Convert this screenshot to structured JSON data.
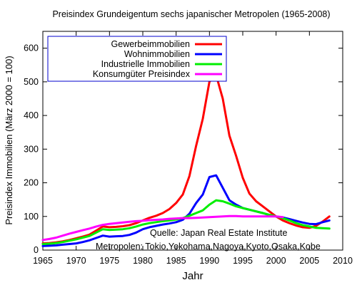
{
  "chart_data": {
    "type": "line",
    "title": "Preisindex Grundeigentum sechs japanischer Metropolen (1965-2008)",
    "xlabel": "Jahr",
    "ylabel": "Preisindex Immobilien (März 2000 = 100)",
    "xlim": [
      1965,
      2010
    ],
    "ylim": [
      0,
      650
    ],
    "xticks": [
      1965,
      1970,
      1975,
      1980,
      1985,
      1990,
      1995,
      2000,
      2005,
      2010
    ],
    "yticks": [
      0,
      100,
      200,
      300,
      400,
      500,
      600
    ],
    "grid": false,
    "legend_position": "top-left",
    "annotations": [
      "Quelle: Japan Real Estate Institute",
      "Metropolen: Tokio,Yokohama,Nagoya,Kyoto,Osaka,Kobe"
    ],
    "series": [
      {
        "name": "Gewerbeimmobilien",
        "color": "#ff0000",
        "points": [
          [
            1965,
            20
          ],
          [
            1966,
            21
          ],
          [
            1967,
            23
          ],
          [
            1968,
            26
          ],
          [
            1969,
            30
          ],
          [
            1970,
            35
          ],
          [
            1971,
            40
          ],
          [
            1972,
            46
          ],
          [
            1973,
            58
          ],
          [
            1974,
            70
          ],
          [
            1975,
            68
          ],
          [
            1976,
            69
          ],
          [
            1977,
            71
          ],
          [
            1978,
            74
          ],
          [
            1979,
            80
          ],
          [
            1980,
            88
          ],
          [
            1981,
            96
          ],
          [
            1982,
            102
          ],
          [
            1983,
            110
          ],
          [
            1984,
            122
          ],
          [
            1985,
            140
          ],
          [
            1986,
            165
          ],
          [
            1987,
            220
          ],
          [
            1988,
            310
          ],
          [
            1989,
            390
          ],
          [
            1990,
            500
          ],
          [
            1991,
            520
          ],
          [
            1992,
            450
          ],
          [
            1993,
            340
          ],
          [
            1994,
            280
          ],
          [
            1995,
            215
          ],
          [
            1996,
            168
          ],
          [
            1997,
            145
          ],
          [
            1998,
            130
          ],
          [
            1999,
            115
          ],
          [
            2000,
            100
          ],
          [
            2001,
            88
          ],
          [
            2002,
            80
          ],
          [
            2003,
            73
          ],
          [
            2004,
            68
          ],
          [
            2005,
            66
          ],
          [
            2006,
            72
          ],
          [
            2007,
            85
          ],
          [
            2008,
            100
          ]
        ]
      },
      {
        "name": "Wohnimmobilien",
        "color": "#0000ff",
        "points": [
          [
            1965,
            12
          ],
          [
            1966,
            13
          ],
          [
            1967,
            14
          ],
          [
            1968,
            16
          ],
          [
            1969,
            18
          ],
          [
            1970,
            20
          ],
          [
            1971,
            24
          ],
          [
            1972,
            29
          ],
          [
            1973,
            36
          ],
          [
            1974,
            43
          ],
          [
            1975,
            40
          ],
          [
            1976,
            41
          ],
          [
            1977,
            42
          ],
          [
            1978,
            45
          ],
          [
            1979,
            52
          ],
          [
            1980,
            62
          ],
          [
            1981,
            68
          ],
          [
            1982,
            72
          ],
          [
            1983,
            76
          ],
          [
            1984,
            79
          ],
          [
            1985,
            83
          ],
          [
            1986,
            90
          ],
          [
            1987,
            108
          ],
          [
            1988,
            140
          ],
          [
            1989,
            165
          ],
          [
            1990,
            217
          ],
          [
            1991,
            222
          ],
          [
            1992,
            185
          ],
          [
            1993,
            148
          ],
          [
            1994,
            135
          ],
          [
            1995,
            125
          ],
          [
            1996,
            120
          ],
          [
            1997,
            115
          ],
          [
            1998,
            110
          ],
          [
            1999,
            104
          ],
          [
            2000,
            100
          ],
          [
            2001,
            97
          ],
          [
            2002,
            92
          ],
          [
            2003,
            87
          ],
          [
            2004,
            82
          ],
          [
            2005,
            78
          ],
          [
            2006,
            77
          ],
          [
            2007,
            83
          ],
          [
            2008,
            88
          ]
        ]
      },
      {
        "name": "Industrielle Immobilien",
        "color": "#00ee00",
        "points": [
          [
            1965,
            18
          ],
          [
            1966,
            19
          ],
          [
            1967,
            21
          ],
          [
            1968,
            24
          ],
          [
            1969,
            28
          ],
          [
            1970,
            32
          ],
          [
            1971,
            37
          ],
          [
            1972,
            42
          ],
          [
            1973,
            52
          ],
          [
            1974,
            62
          ],
          [
            1975,
            60
          ],
          [
            1976,
            61
          ],
          [
            1977,
            62
          ],
          [
            1978,
            65
          ],
          [
            1979,
            70
          ],
          [
            1980,
            76
          ],
          [
            1981,
            80
          ],
          [
            1982,
            83
          ],
          [
            1983,
            86
          ],
          [
            1984,
            88
          ],
          [
            1985,
            91
          ],
          [
            1986,
            95
          ],
          [
            1987,
            102
          ],
          [
            1988,
            110
          ],
          [
            1989,
            118
          ],
          [
            1990,
            135
          ],
          [
            1991,
            148
          ],
          [
            1992,
            145
          ],
          [
            1993,
            138
          ],
          [
            1994,
            130
          ],
          [
            1995,
            125
          ],
          [
            1996,
            120
          ],
          [
            1997,
            115
          ],
          [
            1998,
            110
          ],
          [
            1999,
            105
          ],
          [
            2000,
            100
          ],
          [
            2001,
            95
          ],
          [
            2002,
            88
          ],
          [
            2003,
            80
          ],
          [
            2004,
            74
          ],
          [
            2005,
            70
          ],
          [
            2006,
            66
          ],
          [
            2007,
            65
          ],
          [
            2008,
            64
          ]
        ]
      },
      {
        "name": "Konsumgüter Preisindex",
        "color": "#ff00ff",
        "points": [
          [
            1965,
            30
          ],
          [
            1966,
            33
          ],
          [
            1967,
            37
          ],
          [
            1968,
            43
          ],
          [
            1969,
            49
          ],
          [
            1970,
            54
          ],
          [
            1971,
            59
          ],
          [
            1972,
            64
          ],
          [
            1973,
            70
          ],
          [
            1974,
            75
          ],
          [
            1975,
            78
          ],
          [
            1976,
            80
          ],
          [
            1977,
            82
          ],
          [
            1978,
            84
          ],
          [
            1979,
            86
          ],
          [
            1980,
            87
          ],
          [
            1981,
            89
          ],
          [
            1982,
            90
          ],
          [
            1983,
            91
          ],
          [
            1984,
            93
          ],
          [
            1985,
            94
          ],
          [
            1986,
            95
          ],
          [
            1987,
            95
          ],
          [
            1988,
            96
          ],
          [
            1989,
            97
          ],
          [
            1990,
            98
          ],
          [
            1991,
            99
          ],
          [
            1992,
            100
          ],
          [
            1993,
            101
          ],
          [
            1994,
            101
          ],
          [
            1995,
            100
          ],
          [
            1996,
            100
          ],
          [
            1997,
            100
          ],
          [
            1998,
            100
          ],
          [
            1999,
            100
          ],
          [
            2000,
            100
          ],
          [
            2001,
            98
          ]
        ]
      }
    ]
  }
}
